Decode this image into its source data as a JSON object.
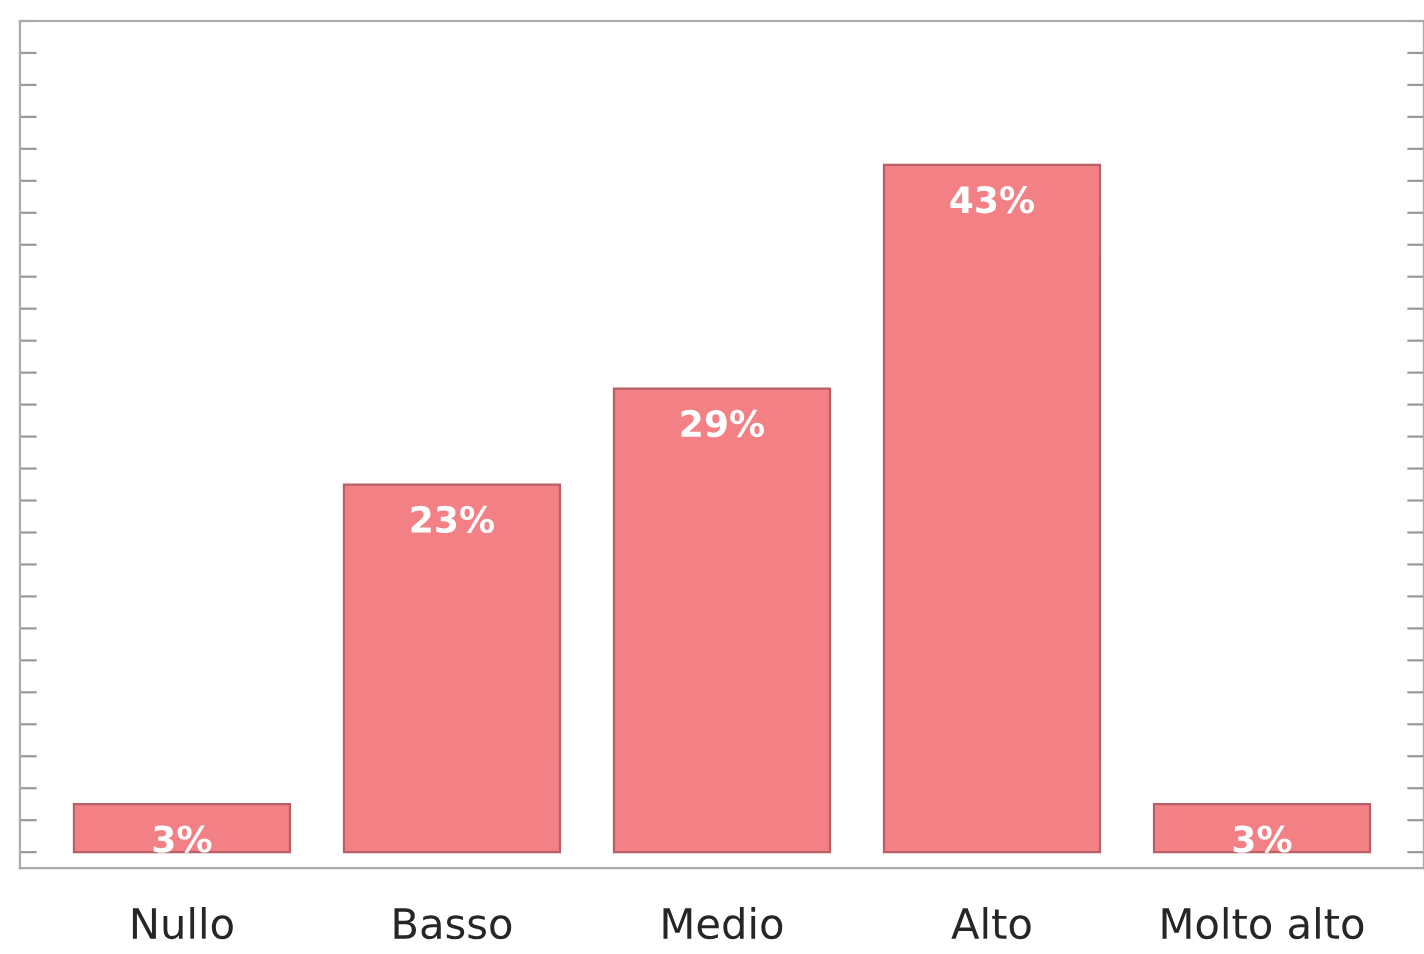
{
  "chart_data": {
    "type": "bar",
    "categories": [
      "Nullo",
      "Basso",
      "Medio",
      "Alto",
      "Molto alto"
    ],
    "values": [
      3,
      23,
      29,
      43,
      3
    ],
    "value_labels": [
      "3%",
      "23%",
      "29%",
      "43%",
      "3%"
    ],
    "color": "#f28085",
    "ylim": [
      -1,
      52
    ],
    "yticks": [
      {
        "value": 0,
        "label": null
      },
      {
        "value": 2,
        "label": null
      },
      {
        "value": 4,
        "label": null
      },
      {
        "value": 6,
        "label": null
      },
      {
        "value": 8,
        "label": null
      },
      {
        "value": 10,
        "label": null
      },
      {
        "value": 12,
        "label": null
      },
      {
        "value": 14,
        "label": null
      },
      {
        "value": 16,
        "label": null
      },
      {
        "value": 18,
        "label": null
      },
      {
        "value": 20,
        "label": null
      },
      {
        "value": 22,
        "label": null
      },
      {
        "value": 24,
        "label": null
      },
      {
        "value": 26,
        "label": null
      },
      {
        "value": 28,
        "label": null
      },
      {
        "value": 30,
        "label": null
      },
      {
        "value": 32,
        "label": null
      },
      {
        "value": 34,
        "label": null
      },
      {
        "value": 36,
        "label": null
      },
      {
        "value": 38,
        "label": null
      },
      {
        "value": 40,
        "label": null
      },
      {
        "value": 42,
        "label": null
      },
      {
        "value": 44,
        "label": null
      },
      {
        "value": 46,
        "label": null
      },
      {
        "value": 48,
        "label": null
      },
      {
        "value": 50,
        "label": null
      },
      {
        "value": 52,
        "label": null
      }
    ],
    "tick_labels": "x",
    "grid": false,
    "legend": false
  }
}
